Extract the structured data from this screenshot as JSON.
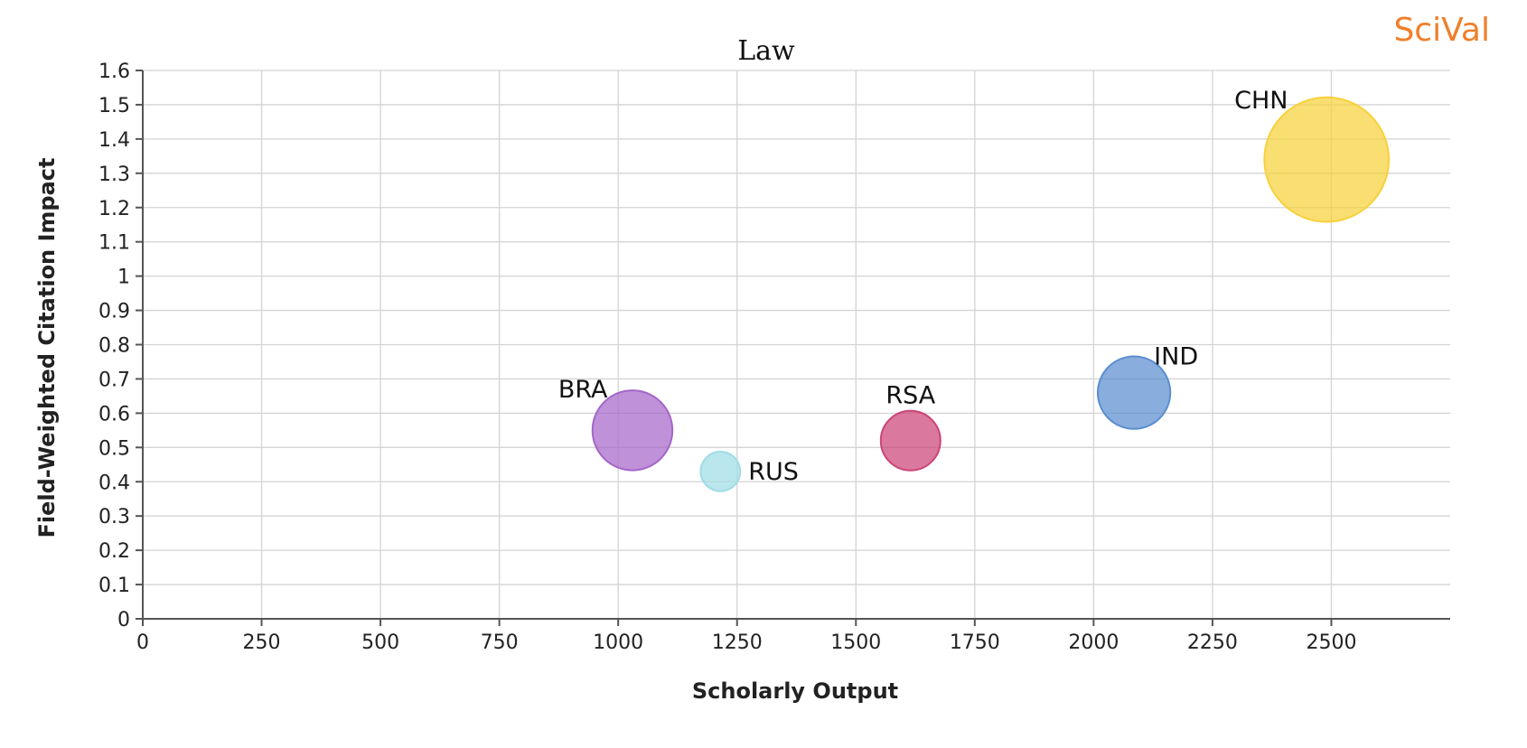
{
  "brand": {
    "name": "SciVal",
    "color": "#f07f2a"
  },
  "chart_data": {
    "type": "scatter",
    "title": "Law",
    "xlabel": "Scholarly Output",
    "ylabel": "Field-Weighted Citation Impact",
    "xlim": [
      0,
      2750
    ],
    "ylim": [
      0,
      1.6
    ],
    "x_ticks": [
      "0",
      "250",
      "500",
      "750",
      "1000",
      "1250",
      "1500",
      "1750",
      "2000",
      "2250",
      "2500"
    ],
    "y_ticks": [
      "0",
      "0.1",
      "0.2",
      "0.3",
      "0.4",
      "0.5",
      "0.6",
      "0.7",
      "0.8",
      "0.9",
      "1",
      "1.1",
      "1.2",
      "1.3",
      "1.4",
      "1.5",
      "1.6"
    ],
    "grid": true,
    "points": [
      {
        "label": "BRA",
        "x": 1030,
        "y": 0.55,
        "size": 2.25,
        "color": "#a566c9",
        "label_pos": "top-left"
      },
      {
        "label": "RUS",
        "x": 1215,
        "y": 0.43,
        "size": 0.55,
        "color": "#9fdce6",
        "label_pos": "right"
      },
      {
        "label": "RSA",
        "x": 1615,
        "y": 0.52,
        "size": 1.25,
        "color": "#cc4477",
        "label_pos": "top"
      },
      {
        "label": "IND",
        "x": 2085,
        "y": 0.66,
        "size": 1.85,
        "color": "#5b8ed0",
        "label_pos": "top-right"
      },
      {
        "label": "CHN",
        "x": 2490,
        "y": 1.34,
        "size": 5.45,
        "color": "#f7d13b",
        "label_pos": "top-left"
      }
    ]
  }
}
